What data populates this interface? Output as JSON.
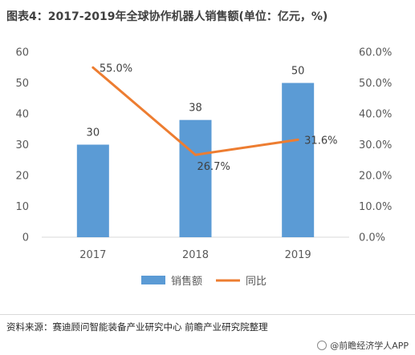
{
  "title": "图表4：2017-2019年全球协作机器人销售额(单位：亿元，%)",
  "source": "资料来源：赛迪顾问智能装备产业研究中心 前瞻产业研究院整理",
  "brand": "@前瞻经济学人APP",
  "chart_data": {
    "type": "bar",
    "categories": [
      "2017",
      "2018",
      "2019"
    ],
    "series": [
      {
        "name": "销售额",
        "type": "bar",
        "axis": "left",
        "values": [
          30,
          38,
          50
        ],
        "labels": [
          "30",
          "38",
          "50"
        ],
        "color": "#5B9BD5"
      },
      {
        "name": "同比",
        "type": "line",
        "axis": "right",
        "values": [
          55.0,
          26.7,
          31.6
        ],
        "labels": [
          "55.0%",
          "26.7%",
          "31.6%"
        ],
        "color": "#ED7D31"
      }
    ],
    "ylim": [
      0,
      60
    ],
    "y2lim": [
      0,
      60
    ],
    "yticks": [
      "0",
      "10",
      "20",
      "30",
      "40",
      "50",
      "60"
    ],
    "y2ticks": [
      "0.0%",
      "10.0%",
      "20.0%",
      "30.0%",
      "40.0%",
      "50.0%",
      "60.0%"
    ],
    "grid": false,
    "legend": "bottom"
  }
}
